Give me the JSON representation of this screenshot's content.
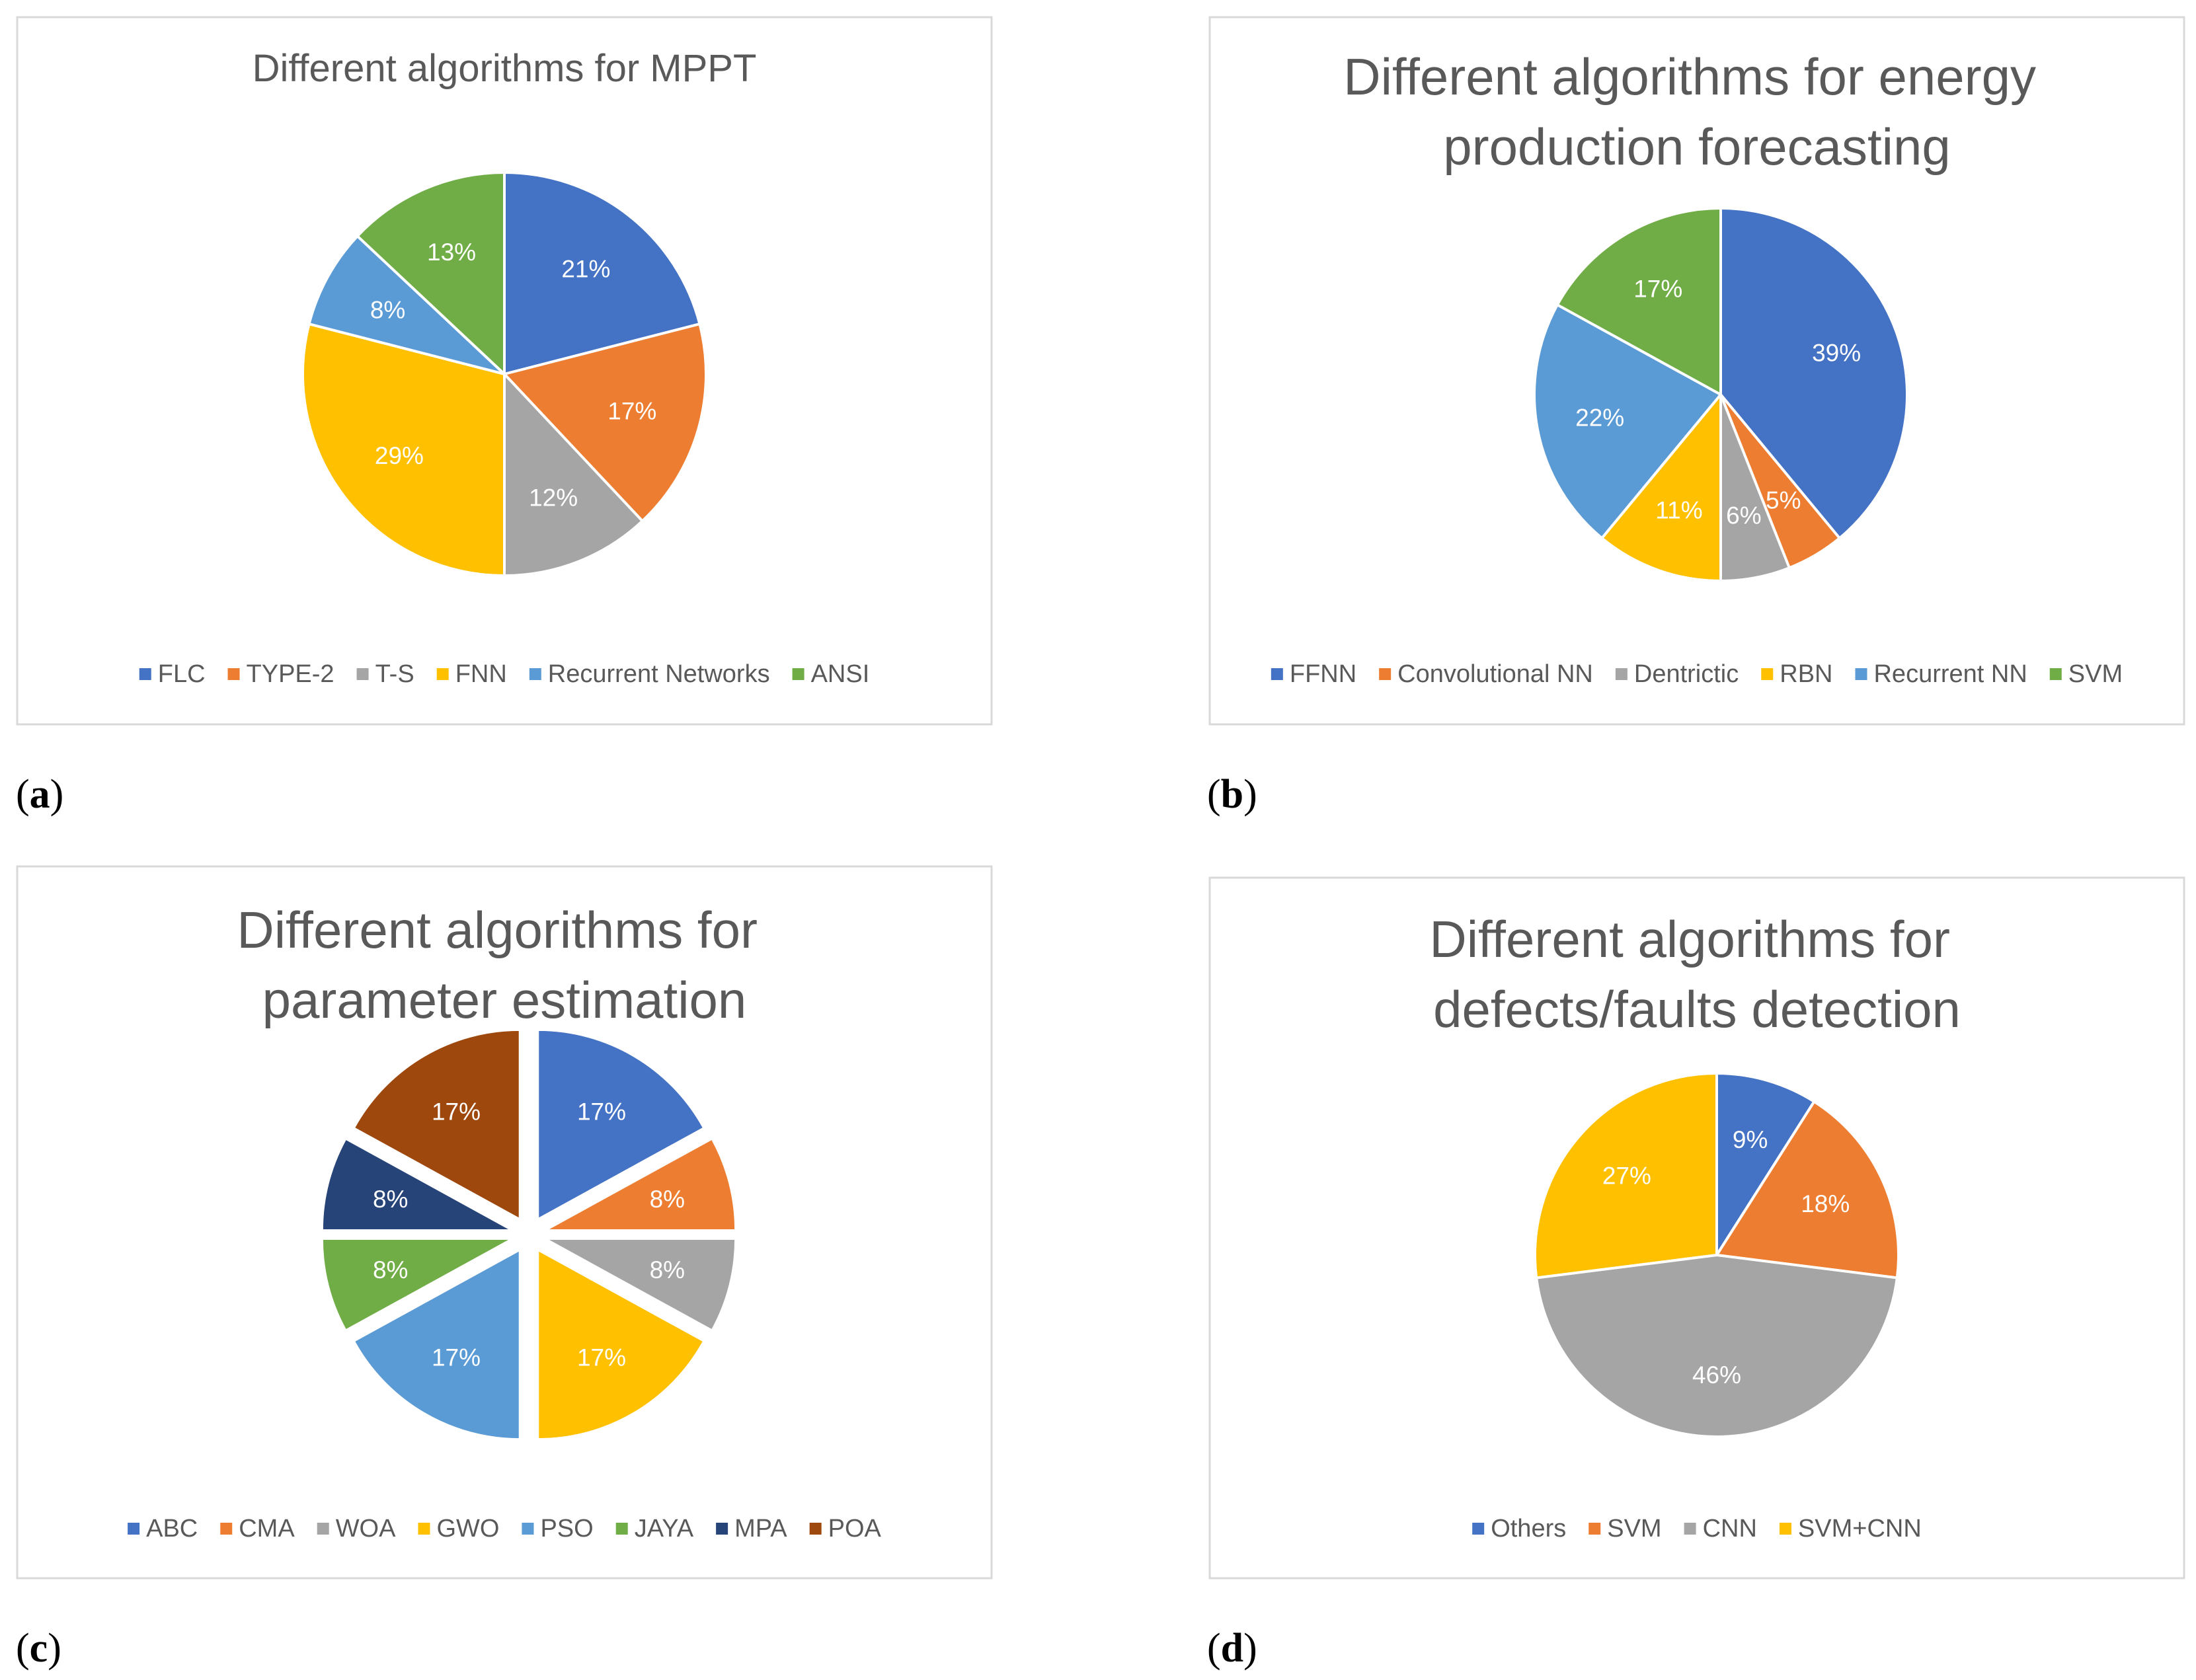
{
  "chart_data": [
    {
      "type": "pie",
      "panel_label": "a",
      "title_lines": [
        "Different algorithms for MPPT"
      ],
      "categories": [
        "FLC",
        "TYPE-2",
        "T-S",
        "FNN",
        "Recurrent Networks",
        "ANSI"
      ],
      "values": [
        21,
        17,
        12,
        29,
        8,
        13
      ],
      "labels": [
        "21%",
        "17%",
        "12%",
        "29%",
        "8%",
        "13%"
      ],
      "colors": [
        "#4472C4",
        "#ED7D31",
        "#A5A5A5",
        "#FFC000",
        "#5B9BD5",
        "#70AD47"
      ],
      "exploded": false,
      "legend_position": "bottom"
    },
    {
      "type": "pie",
      "panel_label": "b",
      "title_lines": [
        "Different algorithms for energy",
        "production forecasting"
      ],
      "categories": [
        "FFNN",
        "Convolutional NN",
        "Dentrictic",
        "RBN",
        "Recurrent NN",
        "SVM"
      ],
      "values": [
        39,
        5,
        6,
        11,
        22,
        17
      ],
      "labels": [
        "39%",
        "5%",
        "6%",
        "11%",
        "22%",
        "17%"
      ],
      "colors": [
        "#4472C4",
        "#ED7D31",
        "#A5A5A5",
        "#FFC000",
        "#5B9BD5",
        "#70AD47"
      ],
      "exploded": false,
      "legend_position": "bottom"
    },
    {
      "type": "pie",
      "panel_label": "c",
      "title_lines": [
        "Different algorithms for",
        "parameter estimation"
      ],
      "categories": [
        "ABC",
        "CMA",
        "WOA",
        "GWO",
        "PSO",
        "JAYA",
        "MPA",
        "POA"
      ],
      "values": [
        17,
        8,
        8,
        17,
        17,
        8,
        8,
        17
      ],
      "labels": [
        "17%",
        "8%",
        "8%",
        "17%",
        "17%",
        "8%",
        "8%",
        "17%"
      ],
      "colors": [
        "#4472C4",
        "#ED7D31",
        "#A5A5A5",
        "#FFC000",
        "#5B9BD5",
        "#70AD47",
        "#264478",
        "#9E480E"
      ],
      "exploded": true,
      "legend_position": "bottom"
    },
    {
      "type": "pie",
      "panel_label": "d",
      "title_lines": [
        "Different algorithms for",
        "defects/faults detection"
      ],
      "categories": [
        "Others",
        "SVM",
        "CNN",
        "SVM+CNN"
      ],
      "values": [
        9,
        18,
        46,
        27
      ],
      "labels": [
        "9%",
        "18%",
        "46%",
        "27%"
      ],
      "colors": [
        "#4472C4",
        "#ED7D31",
        "#A5A5A5",
        "#FFC000"
      ],
      "exploded": false,
      "legend_position": "bottom"
    }
  ]
}
